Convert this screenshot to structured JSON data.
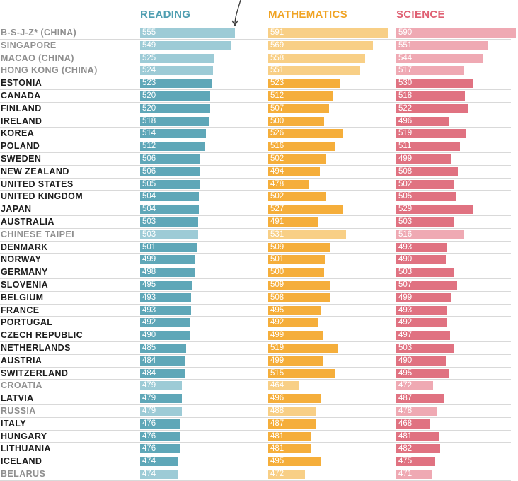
{
  "chart_data": {
    "type": "bar",
    "subjects": [
      "READING",
      "MATHEMATICS",
      "SCIENCE"
    ],
    "colors": {
      "reading": {
        "dark": "#5fa7b8",
        "light": "#9dcbd6"
      },
      "mathematics": {
        "dark": "#f5ae3b",
        "light": "#f8cf86"
      },
      "science": {
        "dark": "#e07281",
        "light": "#efa9b3"
      },
      "header_reading": "#4f9eb1",
      "header_mathematics": "#f0a323",
      "header_science": "#df5f72"
    },
    "rows": [
      {
        "country": "B-S-J-Z* (CHINA)",
        "dim": true,
        "reading": 555,
        "mathematics": 591,
        "science": 590
      },
      {
        "country": "SINGAPORE",
        "dim": true,
        "reading": 549,
        "mathematics": 569,
        "science": 551
      },
      {
        "country": "MACAO (CHINA)",
        "dim": true,
        "reading": 525,
        "mathematics": 558,
        "science": 544
      },
      {
        "country": "HONG KONG (CHINA)",
        "dim": true,
        "reading": 524,
        "mathematics": 551,
        "science": 517
      },
      {
        "country": "ESTONIA",
        "dim": false,
        "reading": 523,
        "mathematics": 523,
        "science": 530
      },
      {
        "country": "CANADA",
        "dim": false,
        "reading": 520,
        "mathematics": 512,
        "science": 518
      },
      {
        "country": "FINLAND",
        "dim": false,
        "reading": 520,
        "mathematics": 507,
        "science": 522
      },
      {
        "country": "IRELAND",
        "dim": false,
        "reading": 518,
        "mathematics": 500,
        "science": 496
      },
      {
        "country": "KOREA",
        "dim": false,
        "reading": 514,
        "mathematics": 526,
        "science": 519
      },
      {
        "country": "POLAND",
        "dim": false,
        "reading": 512,
        "mathematics": 516,
        "science": 511
      },
      {
        "country": "SWEDEN",
        "dim": false,
        "reading": 506,
        "mathematics": 502,
        "science": 499
      },
      {
        "country": "NEW ZEALAND",
        "dim": false,
        "reading": 506,
        "mathematics": 494,
        "science": 508
      },
      {
        "country": "UNITED STATES",
        "dim": false,
        "reading": 505,
        "mathematics": 478,
        "science": 502
      },
      {
        "country": "UNITED KINGDOM",
        "dim": false,
        "reading": 504,
        "mathematics": 502,
        "science": 505
      },
      {
        "country": "JAPAN",
        "dim": false,
        "reading": 504,
        "mathematics": 527,
        "science": 529
      },
      {
        "country": "AUSTRALIA",
        "dim": false,
        "reading": 503,
        "mathematics": 491,
        "science": 503
      },
      {
        "country": "CHINESE TAIPEI",
        "dim": true,
        "reading": 503,
        "mathematics": 531,
        "science": 516
      },
      {
        "country": "DENMARK",
        "dim": false,
        "reading": 501,
        "mathematics": 509,
        "science": 493
      },
      {
        "country": "NORWAY",
        "dim": false,
        "reading": 499,
        "mathematics": 501,
        "science": 490
      },
      {
        "country": "GERMANY",
        "dim": false,
        "reading": 498,
        "mathematics": 500,
        "science": 503
      },
      {
        "country": "SLOVENIA",
        "dim": false,
        "reading": 495,
        "mathematics": 509,
        "science": 507
      },
      {
        "country": "BELGIUM",
        "dim": false,
        "reading": 493,
        "mathematics": 508,
        "science": 499
      },
      {
        "country": "FRANCE",
        "dim": false,
        "reading": 493,
        "mathematics": 495,
        "science": 493
      },
      {
        "country": "PORTUGAL",
        "dim": false,
        "reading": 492,
        "mathematics": 492,
        "science": 492
      },
      {
        "country": "CZECH REPUBLIC",
        "dim": false,
        "reading": 490,
        "mathematics": 499,
        "science": 497
      },
      {
        "country": "NETHERLANDS",
        "dim": false,
        "reading": 485,
        "mathematics": 519,
        "science": 503
      },
      {
        "country": "AUSTRIA",
        "dim": false,
        "reading": 484,
        "mathematics": 499,
        "science": 490
      },
      {
        "country": "SWITZERLAND",
        "dim": false,
        "reading": 484,
        "mathematics": 515,
        "science": 495
      },
      {
        "country": "CROATIA",
        "dim": true,
        "reading": 479,
        "mathematics": 464,
        "science": 472
      },
      {
        "country": "LATVIA",
        "dim": false,
        "reading": 479,
        "mathematics": 496,
        "science": 487
      },
      {
        "country": "RUSSIA",
        "dim": true,
        "reading": 479,
        "mathematics": 488,
        "science": 478
      },
      {
        "country": "ITALY",
        "dim": false,
        "reading": 476,
        "mathematics": 487,
        "science": 468
      },
      {
        "country": "HUNGARY",
        "dim": false,
        "reading": 476,
        "mathematics": 481,
        "science": 481
      },
      {
        "country": "LITHUANIA",
        "dim": false,
        "reading": 476,
        "mathematics": 481,
        "science": 482
      },
      {
        "country": "ICELAND",
        "dim": false,
        "reading": 474,
        "mathematics": 495,
        "science": 475
      },
      {
        "country": "BELARUS",
        "dim": true,
        "reading": 474,
        "mathematics": 472,
        "science": 471
      }
    ]
  }
}
